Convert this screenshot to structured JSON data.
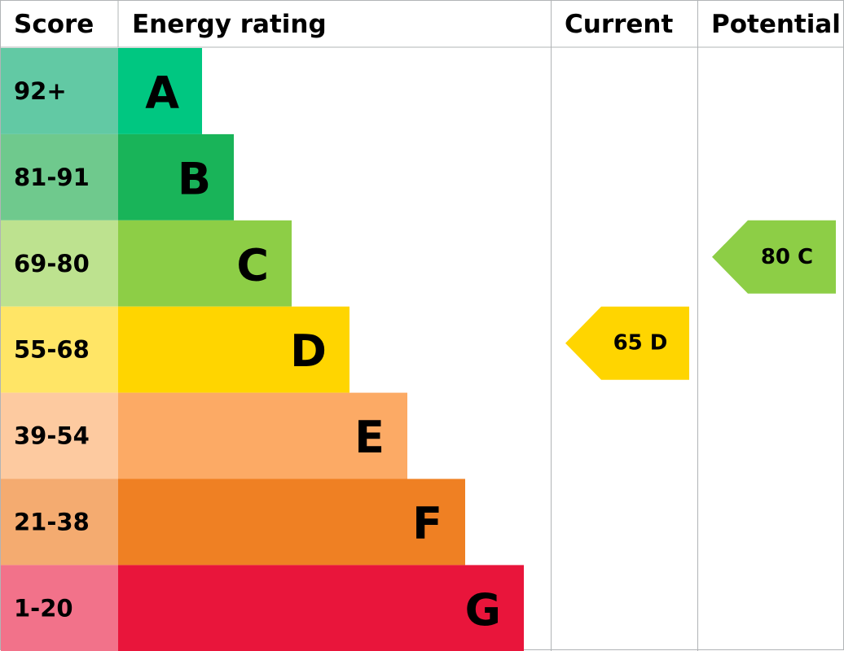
{
  "header": {
    "score": "Score",
    "rating": "Energy rating",
    "current": "Current",
    "potential": "Potential"
  },
  "bands": [
    {
      "score": "92+",
      "letter": "A",
      "color": "#00c781",
      "score_color": "#62c9a4"
    },
    {
      "score": "81-91",
      "letter": "B",
      "color": "#19b459",
      "score_color": "#6fc98d"
    },
    {
      "score": "69-80",
      "letter": "C",
      "color": "#8dce46",
      "score_color": "#bde28f"
    },
    {
      "score": "55-68",
      "letter": "D",
      "color": "#ffd500",
      "score_color": "#ffe566"
    },
    {
      "score": "39-54",
      "letter": "E",
      "color": "#fcaa65",
      "score_color": "#fdcaa0"
    },
    {
      "score": "21-38",
      "letter": "F",
      "color": "#ef8023",
      "score_color": "#f4ab70"
    },
    {
      "score": "1-20",
      "letter": "G",
      "color": "#e9153b",
      "score_color": "#f2728a"
    }
  ],
  "current": {
    "label": "65 D",
    "letter": "D"
  },
  "potential": {
    "label": "80 C",
    "letter": "C"
  }
}
